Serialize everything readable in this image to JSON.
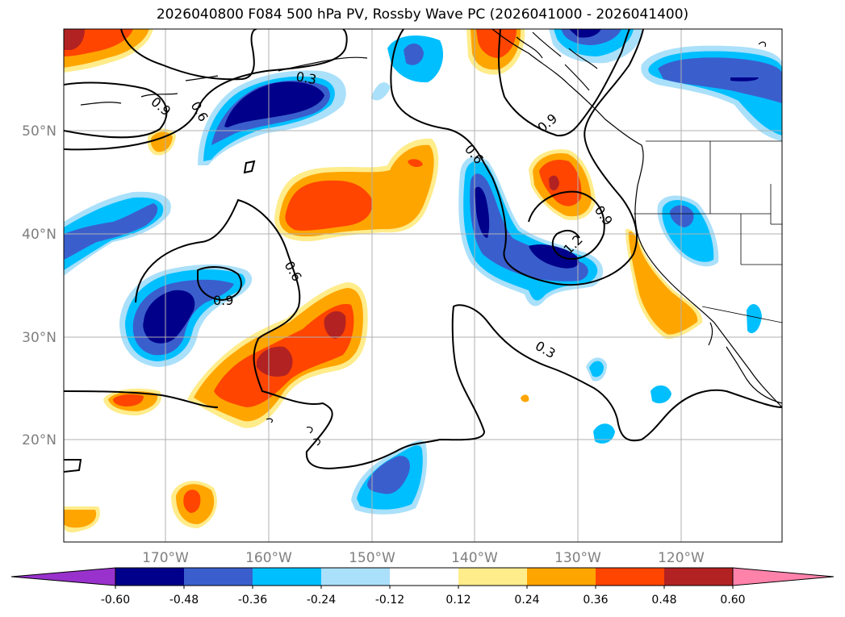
{
  "title": "2026040800 F084 500 hPa PV, Rossby Wave PC (2026041000 - 2026041400)",
  "lat_labels": [
    "50°N",
    "40°N",
    "30°N",
    "20°N"
  ],
  "lon_labels": [
    "170°W",
    "160°W",
    "150°W",
    "140°W",
    "130°W",
    "120°W"
  ],
  "colorbar": {
    "ticks": [
      "-0.60",
      "-0.48",
      "-0.36",
      "-0.24",
      "-0.12",
      "0.12",
      "0.24",
      "0.36",
      "0.48",
      "0.60"
    ],
    "colors": [
      "#9932cc",
      "#00008b",
      "#3a5fcd",
      "#00bfff",
      "#aae0fa",
      "#ffffff",
      "#ffec8b",
      "#ffa500",
      "#ff4500",
      "#b22222",
      "#ff82ab"
    ]
  },
  "contour_labels": [
    "0.9",
    "0.6",
    "0.3",
    "0.9",
    "0.6",
    "0.9",
    "1.2",
    "0.6",
    "0.9",
    "0.3"
  ],
  "legend_colors": {
    "neg_strong": "#00008b",
    "neg_mid": "#3a5fcd",
    "neg_light": "#00bfff",
    "neg_faint": "#aae0fa",
    "pos_faint": "#ffec8b",
    "pos_light": "#ffa500",
    "pos_mid": "#ff4500",
    "pos_strong": "#b22222"
  }
}
